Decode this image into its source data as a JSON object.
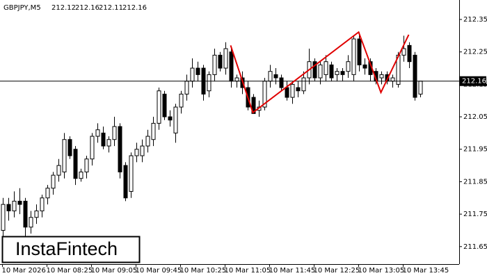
{
  "chart_data": {
    "type": "candlestick",
    "symbol": "GBPJPY,M5",
    "categories": [
      "10 Mar 2026",
      null,
      null,
      null,
      null,
      null,
      null,
      null,
      "10 Mar 08:25",
      null,
      null,
      null,
      null,
      null,
      null,
      null,
      "10 Mar 09:05",
      null,
      null,
      null,
      null,
      null,
      null,
      null,
      "10 Mar 09:45",
      null,
      null,
      null,
      null,
      null,
      null,
      null,
      "10 Mar 10:25",
      null,
      null,
      null,
      null,
      null,
      null,
      null,
      "10 Mar 11:05",
      null,
      null,
      null,
      null,
      null,
      null,
      null,
      "10 Mar 11:45",
      null,
      null,
      null,
      null,
      null,
      null,
      null,
      "10 Mar 12:25",
      null,
      null,
      null,
      null,
      null,
      null,
      null,
      "10 Mar 13:05",
      null,
      null,
      null,
      null,
      null,
      null,
      null,
      "10 Mar 13:45",
      null,
      null,
      null
    ],
    "open": [
      211.7,
      211.78,
      211.76,
      211.79,
      211.79,
      211.71,
      211.74,
      211.76,
      211.8,
      211.83,
      211.87,
      211.88,
      211.98,
      211.95,
      211.86,
      211.88,
      211.92,
      211.99,
      212.0,
      211.96,
      211.98,
      212.02,
      211.9,
      211.82,
      211.93,
      211.93,
      211.96,
      211.98,
      212.03,
      212.12,
      212.05,
      212.0,
      212.08,
      212.12,
      212.16,
      212.2,
      212.2,
      212.13,
      212.18,
      212.24,
      212.2,
      212.25,
      212.16,
      212.17,
      212.14,
      212.11,
      212.07,
      212.08,
      212.16,
      212.18,
      212.17,
      212.14,
      212.11,
      212.14,
      212.13,
      212.17,
      212.22,
      212.17,
      212.18,
      212.21,
      212.18,
      212.19,
      212.19,
      212.18,
      212.29,
      212.21,
      212.22,
      212.19,
      212.17,
      212.18,
      212.16,
      212.15,
      212.24,
      212.27,
      212.24,
      212.12
    ],
    "high": [
      211.8,
      211.8,
      211.82,
      211.83,
      211.8,
      211.76,
      211.78,
      211.81,
      211.84,
      211.88,
      211.92,
      212.0,
      211.99,
      211.96,
      211.89,
      211.93,
      212.0,
      212.03,
      212.02,
      211.99,
      212.05,
      212.03,
      211.91,
      211.94,
      211.97,
      211.98,
      212.01,
      212.05,
      212.14,
      212.13,
      212.07,
      212.09,
      212.13,
      212.18,
      212.23,
      212.22,
      212.21,
      212.19,
      212.26,
      212.25,
      212.28,
      212.26,
      212.18,
      212.19,
      212.16,
      212.12,
      212.1,
      212.17,
      212.21,
      212.2,
      212.18,
      212.16,
      212.16,
      212.16,
      212.19,
      212.26,
      212.23,
      212.22,
      212.24,
      212.22,
      212.2,
      212.2,
      212.24,
      212.3,
      212.31,
      212.23,
      212.23,
      212.2,
      212.19,
      212.19,
      212.18,
      212.25,
      212.3,
      212.28,
      212.25,
      212.16
    ],
    "low": [
      211.68,
      211.73,
      211.74,
      211.75,
      211.68,
      211.69,
      211.72,
      211.74,
      211.78,
      211.81,
      211.85,
      211.86,
      211.92,
      211.84,
      211.85,
      211.86,
      211.9,
      211.97,
      211.95,
      211.94,
      211.96,
      211.86,
      211.79,
      211.8,
      211.91,
      211.91,
      211.94,
      211.96,
      212.01,
      212.04,
      212.02,
      211.97,
      212.06,
      212.1,
      212.14,
      212.16,
      212.1,
      212.11,
      212.16,
      212.19,
      212.18,
      212.14,
      212.14,
      212.12,
      212.07,
      212.06,
      212.05,
      212.07,
      212.14,
      212.15,
      212.13,
      212.1,
      212.09,
      212.11,
      212.12,
      212.15,
      212.16,
      212.15,
      212.16,
      212.16,
      212.16,
      212.16,
      212.17,
      212.16,
      212.19,
      212.18,
      212.16,
      212.15,
      212.15,
      212.15,
      212.14,
      212.14,
      212.22,
      212.2,
      212.1,
      212.11
    ],
    "close": [
      211.78,
      211.76,
      211.79,
      211.78,
      211.71,
      211.74,
      211.76,
      211.8,
      211.83,
      211.87,
      211.9,
      211.98,
      211.93,
      211.86,
      211.88,
      211.92,
      211.99,
      212.01,
      211.96,
      211.98,
      212.02,
      211.88,
      211.8,
      211.93,
      211.95,
      211.96,
      211.99,
      212.03,
      212.13,
      212.05,
      212.04,
      212.08,
      212.12,
      212.16,
      212.2,
      212.18,
      212.12,
      212.18,
      212.24,
      212.2,
      212.26,
      212.16,
      212.17,
      212.14,
      212.08,
      212.06,
      212.08,
      212.16,
      212.19,
      212.17,
      212.14,
      212.11,
      212.15,
      212.13,
      212.17,
      212.22,
      212.17,
      212.21,
      212.22,
      212.17,
      212.19,
      212.18,
      212.22,
      212.29,
      212.21,
      212.2,
      212.18,
      212.16,
      212.18,
      212.16,
      212.17,
      212.24,
      212.26,
      212.22,
      212.11,
      212.16
    ],
    "ylim": [
      211.596,
      212.41
    ],
    "yticks": [
      211.65,
      211.75,
      211.85,
      211.95,
      212.05,
      212.15,
      212.25,
      212.35
    ],
    "current_price": 212.16,
    "pattern": {
      "color": "#e00000",
      "points": [
        {
          "bar": 41,
          "value": 212.27
        },
        {
          "bar": 45,
          "value": 212.063
        },
        {
          "bar": 64,
          "value": 212.311
        },
        {
          "bar": 68,
          "value": 212.125
        },
        {
          "bar": 73,
          "value": 212.303
        }
      ]
    },
    "logo": "InstaFintech"
  }
}
